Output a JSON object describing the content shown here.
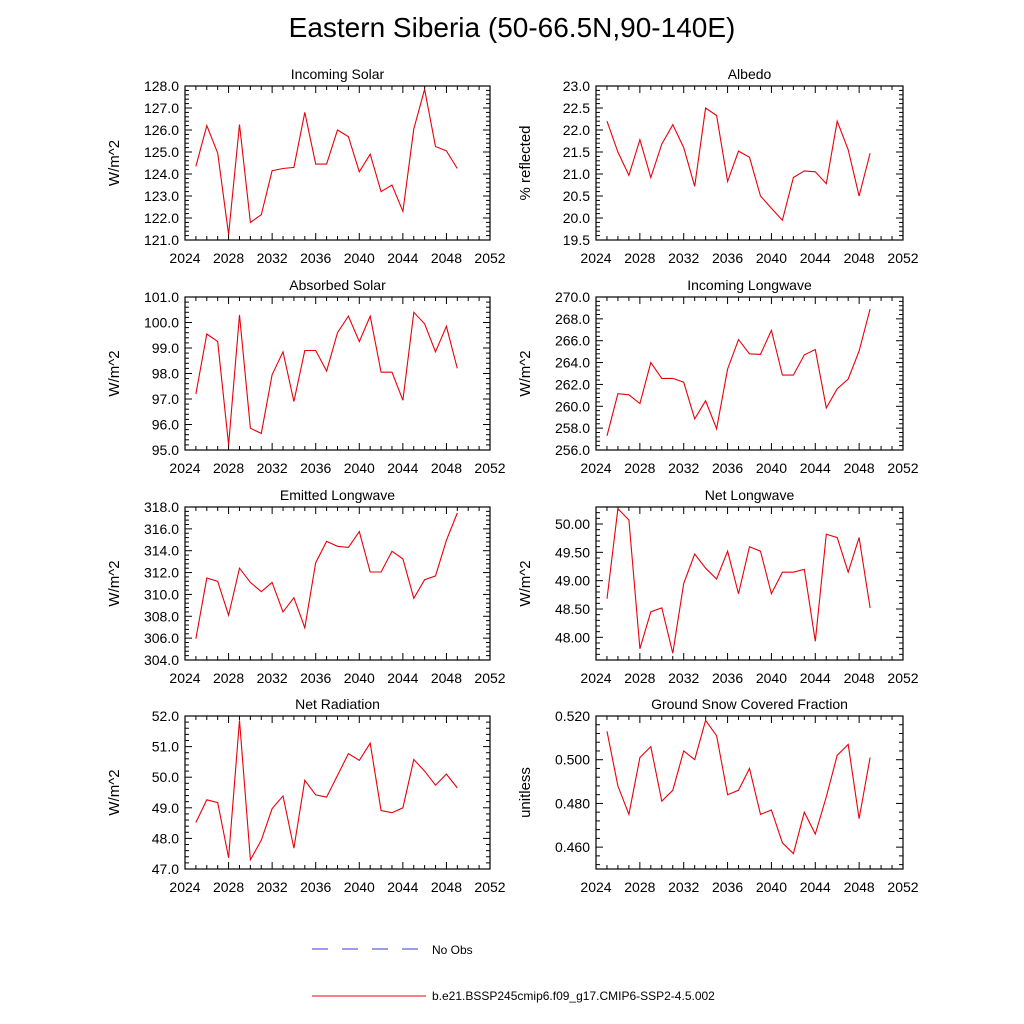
{
  "title": "Eastern Siberia (50-66.5N,90-140E)",
  "colors": {
    "model": "#e8000b",
    "obs": "#3a3ad0",
    "axis": "#000000"
  },
  "legend": {
    "obs_label": "No Obs",
    "model_label": "b.e21.BSSP245cmip6.f09_g17.CMIP6-SSP2-4.5.002"
  },
  "chart_data": [
    {
      "type": "line",
      "title": "Incoming Solar",
      "ylabel": "W/m^2",
      "xlim": [
        2024,
        2052
      ],
      "ylim": [
        121.0,
        128.0
      ],
      "xticks": [
        2024,
        2028,
        2032,
        2036,
        2040,
        2044,
        2048,
        2052
      ],
      "yticks": [
        "121.0",
        "122.0",
        "123.0",
        "124.0",
        "125.0",
        "126.0",
        "127.0",
        "128.0"
      ],
      "x": [
        2025,
        2026,
        2027,
        2028,
        2029,
        2030,
        2031,
        2032,
        2033,
        2034,
        2035,
        2036,
        2037,
        2038,
        2039,
        2040,
        2041,
        2042,
        2043,
        2044,
        2045,
        2046,
        2047,
        2048,
        2049
      ],
      "values": [
        124.35,
        126.2,
        124.95,
        121.25,
        126.25,
        121.8,
        122.15,
        124.15,
        124.25,
        124.3,
        126.8,
        124.45,
        124.45,
        126.0,
        125.7,
        124.1,
        124.9,
        123.2,
        123.5,
        122.3,
        126.05,
        127.85,
        125.25,
        125.05,
        124.25
      ]
    },
    {
      "type": "line",
      "title": "Albedo",
      "ylabel": "% reflected",
      "xlim": [
        2024,
        2052
      ],
      "ylim": [
        19.5,
        23.0
      ],
      "xticks": [
        2024,
        2028,
        2032,
        2036,
        2040,
        2044,
        2048,
        2052
      ],
      "yticks": [
        "19.5",
        "20.0",
        "20.5",
        "21.0",
        "21.5",
        "22.0",
        "22.5",
        "23.0"
      ],
      "x": [
        2025,
        2026,
        2027,
        2028,
        2029,
        2030,
        2031,
        2032,
        2033,
        2034,
        2035,
        2036,
        2037,
        2038,
        2039,
        2040,
        2041,
        2042,
        2043,
        2044,
        2045,
        2046,
        2047,
        2048,
        2049
      ],
      "values": [
        22.2,
        21.5,
        20.97,
        21.78,
        20.92,
        21.68,
        22.12,
        21.6,
        20.72,
        22.5,
        22.33,
        20.83,
        21.52,
        21.38,
        20.5,
        20.22,
        19.95,
        20.92,
        21.07,
        21.05,
        20.78,
        22.2,
        21.55,
        20.5,
        21.47
      ]
    },
    {
      "type": "line",
      "title": "Absorbed Solar",
      "ylabel": "W/m^2",
      "xlim": [
        2024,
        2052
      ],
      "ylim": [
        95.0,
        101.0
      ],
      "xticks": [
        2024,
        2028,
        2032,
        2036,
        2040,
        2044,
        2048,
        2052
      ],
      "yticks": [
        "95.0",
        "96.0",
        "97.0",
        "98.0",
        "99.0",
        "100.0",
        "101.0"
      ],
      "x": [
        2025,
        2026,
        2027,
        2028,
        2029,
        2030,
        2031,
        2032,
        2033,
        2034,
        2035,
        2036,
        2037,
        2038,
        2039,
        2040,
        2041,
        2042,
        2043,
        2044,
        2045,
        2046,
        2047,
        2048,
        2049
      ],
      "values": [
        97.2,
        99.55,
        99.25,
        95.2,
        100.3,
        95.85,
        95.65,
        97.95,
        98.85,
        96.9,
        98.9,
        98.9,
        98.1,
        99.6,
        100.25,
        99.25,
        100.25,
        98.05,
        98.05,
        96.95,
        100.4,
        99.95,
        98.85,
        99.85,
        98.2
      ]
    },
    {
      "type": "line",
      "title": "Incoming Longwave",
      "ylabel": "W/m^2",
      "xlim": [
        2024,
        2052
      ],
      "ylim": [
        256.0,
        270.0
      ],
      "xticks": [
        2024,
        2028,
        2032,
        2036,
        2040,
        2044,
        2048,
        2052
      ],
      "yticks": [
        "256.0",
        "258.0",
        "260.0",
        "262.0",
        "264.0",
        "266.0",
        "268.0",
        "270.0"
      ],
      "x": [
        2025,
        2026,
        2027,
        2028,
        2029,
        2030,
        2031,
        2032,
        2033,
        2034,
        2035,
        2036,
        2037,
        2038,
        2039,
        2040,
        2041,
        2042,
        2043,
        2044,
        2045,
        2046,
        2047,
        2048,
        2049
      ],
      "values": [
        257.3,
        261.15,
        261.05,
        260.25,
        264.0,
        262.55,
        262.55,
        262.2,
        258.85,
        260.5,
        257.95,
        263.4,
        266.1,
        264.8,
        264.75,
        266.95,
        262.85,
        262.85,
        264.7,
        265.2,
        259.85,
        261.6,
        262.5,
        265.05,
        268.9
      ]
    },
    {
      "type": "line",
      "title": "Emitted Longwave",
      "ylabel": "W/m^2",
      "xlim": [
        2024,
        2052
      ],
      "ylim": [
        304.0,
        318.0
      ],
      "xticks": [
        2024,
        2028,
        2032,
        2036,
        2040,
        2044,
        2048,
        2052
      ],
      "yticks": [
        "304.0",
        "306.0",
        "308.0",
        "310.0",
        "312.0",
        "314.0",
        "316.0",
        "318.0"
      ],
      "x": [
        2025,
        2026,
        2027,
        2028,
        2029,
        2030,
        2031,
        2032,
        2033,
        2034,
        2035,
        2036,
        2037,
        2038,
        2039,
        2040,
        2041,
        2042,
        2043,
        2044,
        2045,
        2046,
        2047,
        2048,
        2049
      ],
      "values": [
        305.95,
        311.5,
        311.2,
        308.1,
        312.4,
        311.1,
        310.25,
        311.1,
        308.4,
        309.7,
        306.95,
        312.9,
        314.85,
        314.4,
        314.3,
        315.75,
        312.05,
        312.05,
        313.95,
        313.25,
        309.65,
        311.35,
        311.7,
        314.95,
        317.45
      ]
    },
    {
      "type": "line",
      "title": "Net Longwave",
      "ylabel": "W/m^2",
      "xlim": [
        2024,
        2052
      ],
      "ylim": [
        47.6,
        50.3
      ],
      "xticks": [
        2024,
        2028,
        2032,
        2036,
        2040,
        2044,
        2048,
        2052
      ],
      "yticks": [
        "48.00",
        "48.50",
        "49.00",
        "49.50",
        "50.00"
      ],
      "x": [
        2025,
        2026,
        2027,
        2028,
        2029,
        2030,
        2031,
        2032,
        2033,
        2034,
        2035,
        2036,
        2037,
        2038,
        2039,
        2040,
        2041,
        2042,
        2043,
        2044,
        2045,
        2046,
        2047,
        2048,
        2049
      ],
      "values": [
        48.68,
        50.27,
        50.07,
        47.8,
        48.45,
        48.52,
        47.72,
        48.95,
        49.47,
        49.22,
        49.03,
        49.52,
        48.77,
        49.6,
        49.52,
        48.77,
        49.15,
        49.15,
        49.2,
        47.93,
        49.82,
        49.76,
        49.15,
        49.76,
        48.52
      ]
    },
    {
      "type": "line",
      "title": "Net Radiation",
      "ylabel": "W/m^2",
      "xlim": [
        2024,
        2052
      ],
      "ylim": [
        47.0,
        52.0
      ],
      "xticks": [
        2024,
        2028,
        2032,
        2036,
        2040,
        2044,
        2048,
        2052
      ],
      "yticks": [
        "47.0",
        "48.0",
        "49.0",
        "50.0",
        "51.0",
        "52.0"
      ],
      "x": [
        2025,
        2026,
        2027,
        2028,
        2029,
        2030,
        2031,
        2032,
        2033,
        2034,
        2035,
        2036,
        2037,
        2038,
        2039,
        2040,
        2041,
        2042,
        2043,
        2044,
        2045,
        2046,
        2047,
        2048,
        2049
      ],
      "values": [
        48.52,
        49.26,
        49.17,
        47.37,
        51.86,
        47.3,
        47.94,
        48.97,
        49.39,
        47.68,
        49.9,
        49.42,
        49.35,
        50.06,
        50.77,
        50.55,
        51.11,
        48.91,
        48.84,
        49.0,
        50.58,
        50.2,
        49.74,
        50.1,
        49.65
      ]
    },
    {
      "type": "line",
      "title": "Ground Snow Covered Fraction",
      "ylabel": "unitless",
      "xlim": [
        2024,
        2052
      ],
      "ylim": [
        0.45,
        0.52
      ],
      "xticks": [
        2024,
        2028,
        2032,
        2036,
        2040,
        2044,
        2048,
        2052
      ],
      "yticks": [
        "0.460",
        "0.480",
        "0.500",
        "0.520"
      ],
      "x": [
        2025,
        2026,
        2027,
        2028,
        2029,
        2030,
        2031,
        2032,
        2033,
        2034,
        2035,
        2036,
        2037,
        2038,
        2039,
        2040,
        2041,
        2042,
        2043,
        2044,
        2045,
        2046,
        2047,
        2048,
        2049
      ],
      "values": [
        0.513,
        0.488,
        0.475,
        0.501,
        0.506,
        0.481,
        0.486,
        0.504,
        0.5,
        0.518,
        0.511,
        0.484,
        0.486,
        0.496,
        0.475,
        0.477,
        0.462,
        0.457,
        0.476,
        0.466,
        0.483,
        0.502,
        0.507,
        0.473,
        0.501
      ]
    }
  ]
}
